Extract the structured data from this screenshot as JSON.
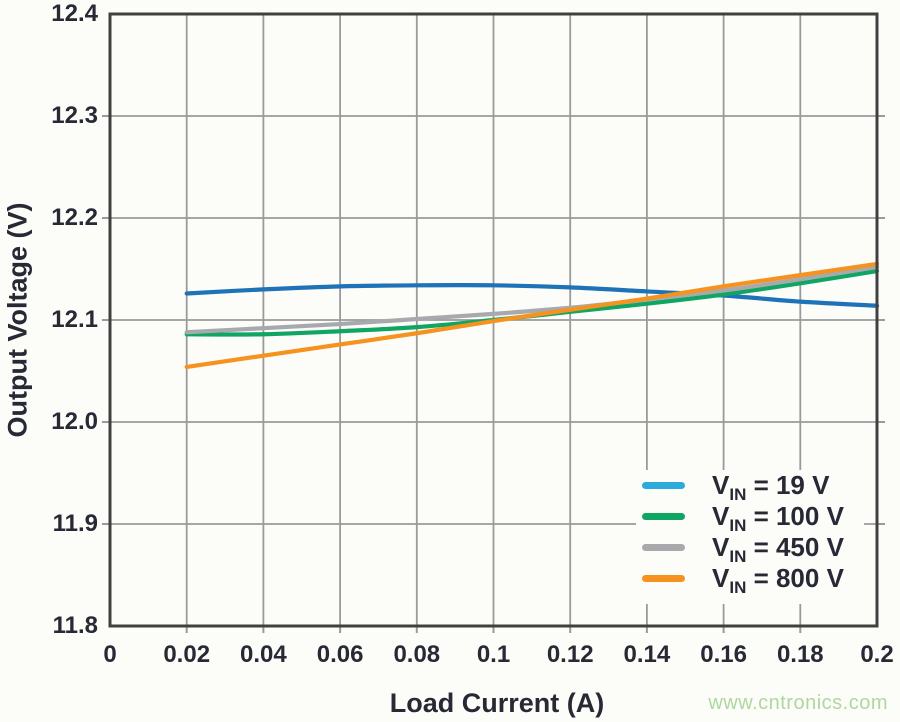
{
  "watermark": "www.cntronics.com",
  "colors": {
    "background": "#FCFCF9",
    "grid": "#9A9A9A",
    "axis_border": "#404040",
    "text": "#272935",
    "watermark_green": "#AFD7A0"
  },
  "chart_data": {
    "type": "line",
    "title": "",
    "xlabel": "Load Current (A)",
    "ylabel": "Output Voltage (V)",
    "xlim": [
      0,
      0.2
    ],
    "ylim": [
      11.8,
      12.4
    ],
    "grid": true,
    "legend_position": "lower right",
    "x_tick_labels": [
      "0",
      "0.02",
      "0.04",
      "0.06",
      "0.08",
      "0.1",
      "0.12",
      "0.14",
      "0.16",
      "0.18",
      "0.2"
    ],
    "x_tick_values": [
      0,
      0.02,
      0.04,
      0.06,
      0.08,
      0.1,
      0.12,
      0.14,
      0.16,
      0.18,
      0.2
    ],
    "y_tick_labels": [
      "12.4",
      "12.3",
      "12.2",
      "12.1",
      "12.0",
      "11.9",
      "11.8"
    ],
    "y_tick_values": [
      12.4,
      12.3,
      12.2,
      12.1,
      12.0,
      11.9,
      11.8
    ],
    "x": [
      0.02,
      0.04,
      0.06,
      0.08,
      0.1,
      0.12,
      0.14,
      0.16,
      0.18,
      0.2
    ],
    "series": [
      {
        "name": "VIN = 19 V",
        "legend_v": "V",
        "legend_sub": "IN",
        "legend_rest": " = 19 V",
        "line_color": "#1D72B8",
        "swatch_color": "#2BABDC",
        "values": [
          12.126,
          12.13,
          12.133,
          12.134,
          12.134,
          12.132,
          12.128,
          12.124,
          12.118,
          12.114
        ]
      },
      {
        "name": "VIN = 100 V",
        "legend_v": "V",
        "legend_sub": "IN",
        "legend_rest": " = 100 V",
        "line_color": "#0FA562",
        "swatch_color": "#0FA562",
        "values": [
          12.086,
          12.086,
          12.089,
          12.093,
          12.1,
          12.108,
          12.116,
          12.125,
          12.136,
          12.148
        ]
      },
      {
        "name": "VIN = 450 V",
        "legend_v": "V",
        "legend_sub": "IN",
        "legend_rest": " = 450 V",
        "line_color": "#A7A9AC",
        "swatch_color": "#A7A9AC",
        "values": [
          12.088,
          12.092,
          12.096,
          12.101,
          12.106,
          12.112,
          12.12,
          12.129,
          12.14,
          12.152
        ]
      },
      {
        "name": "VIN = 800 V",
        "legend_v": "V",
        "legend_sub": "IN",
        "legend_rest": " = 800 V",
        "line_color": "#F6921E",
        "swatch_color": "#F6921E",
        "values": [
          12.054,
          12.065,
          12.076,
          12.087,
          12.099,
          12.11,
          12.121,
          12.133,
          12.144,
          12.155
        ]
      }
    ]
  }
}
